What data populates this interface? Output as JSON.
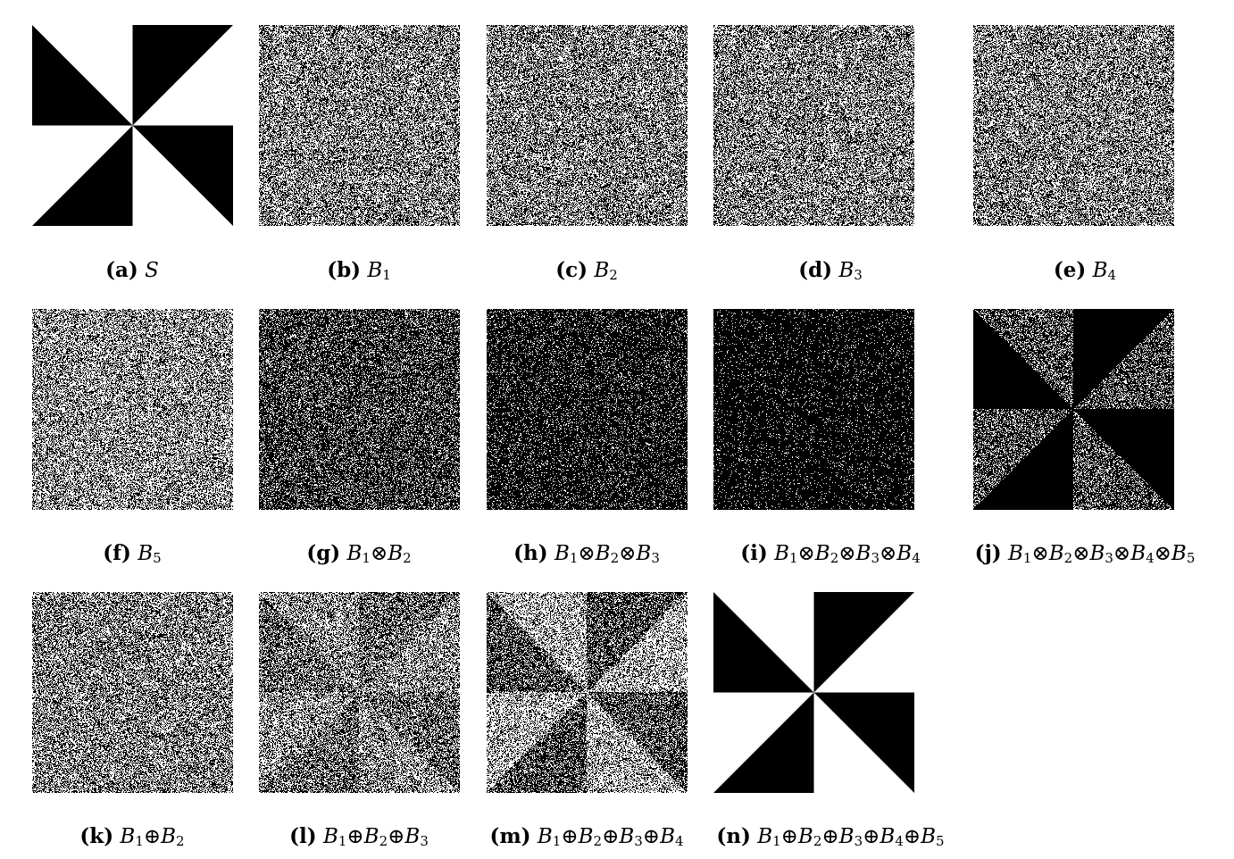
{
  "figure": {
    "panels": [
      {
        "id": "a",
        "label": "(a)",
        "formula_html": "S",
        "pattern": "pinwheel"
      },
      {
        "id": "b",
        "label": "(b)",
        "formula_html": "B<sub>1</sub>",
        "pattern": "noise",
        "density": 0.5
      },
      {
        "id": "c",
        "label": "(c)",
        "formula_html": "B<sub>2</sub>",
        "pattern": "noise",
        "density": 0.5
      },
      {
        "id": "d",
        "label": "(d)",
        "formula_html": "B<sub>3</sub>",
        "pattern": "noise",
        "density": 0.5
      },
      {
        "id": "e",
        "label": "(e)",
        "formula_html": "B<sub>4</sub>",
        "pattern": "noise",
        "density": 0.5
      },
      {
        "id": "f",
        "label": "(f)",
        "formula_html": "B<sub>5</sub>",
        "pattern": "noise",
        "density": 0.55
      },
      {
        "id": "g",
        "label": "(g)",
        "formula_html": "B<sub>1</sub>⊗B<sub>2</sub>",
        "pattern": "noise",
        "density": 0.25
      },
      {
        "id": "h",
        "label": "(h)",
        "formula_html": "B<sub>1</sub>⊗B<sub>2</sub>⊗B<sub>3</sub>",
        "pattern": "noise",
        "density": 0.13
      },
      {
        "id": "i",
        "label": "(i)",
        "formula_html": "B<sub>1</sub>⊗B<sub>2</sub>⊗B<sub>3</sub>⊗B<sub>4</sub>",
        "pattern": "noise",
        "density": 0.07
      },
      {
        "id": "j",
        "label": "(j)",
        "formula_html": "B<sub>1</sub>⊗B<sub>2</sub>⊗B<sub>3</sub>⊗B<sub>4</sub>⊗B<sub>5</sub>",
        "pattern": "pinwheel-noise",
        "density": 0.3
      },
      {
        "id": "k",
        "label": "(k)",
        "formula_html": "B<sub>1</sub>⊕B<sub>2</sub>",
        "pattern": "noise",
        "density": 0.5
      },
      {
        "id": "l",
        "label": "(l)",
        "formula_html": "B<sub>1</sub>⊕B<sub>2</sub>⊕B<sub>3</sub>",
        "pattern": "pinwheel-contrast",
        "density_in": 0.4,
        "density_out": 0.55
      },
      {
        "id": "m",
        "label": "(m)",
        "formula_html": "B<sub>1</sub>⊕B<sub>2</sub>⊕B<sub>3</sub>⊕B<sub>4</sub>",
        "pattern": "pinwheel-contrast",
        "density_in": 0.3,
        "density_out": 0.65
      },
      {
        "id": "n",
        "label": "(n)",
        "formula_html": "B<sub>1</sub>⊕B<sub>2</sub>⊕B<sub>3</sub>⊕B<sub>4</sub>⊕B<sub>5</sub>",
        "pattern": "pinwheel"
      }
    ],
    "colors": {
      "ink": "#000000",
      "paper": "#ffffff"
    }
  }
}
